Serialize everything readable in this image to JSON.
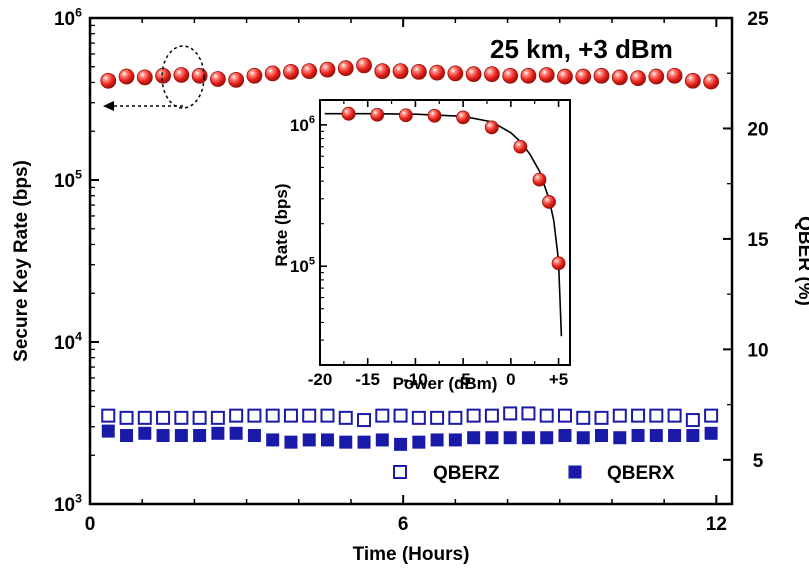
{
  "chart_data": [
    {
      "type": "scatter",
      "role": "main",
      "annotation": "25 km, +3 dBm",
      "xlabel": "Time (Hours)",
      "ylabel_left": "Secure Key Rate (bps)",
      "ylabel_right": "QBER (%)",
      "xlim": [
        0,
        12.3
      ],
      "x_ticks": [
        0,
        6,
        12
      ],
      "ylim_left": [
        1000,
        1000000
      ],
      "yscale_left": "log",
      "y_ticks_left": [
        {
          "base": "10",
          "exp": "3"
        },
        {
          "base": "10",
          "exp": "4"
        },
        {
          "base": "10",
          "exp": "5"
        },
        {
          "base": "10",
          "exp": "6"
        }
      ],
      "ylim_right": [
        3.0,
        25.0
      ],
      "y_ticks_right": [
        5,
        10,
        15,
        20,
        25
      ],
      "legend": {
        "placement": "bottom-right",
        "entries": [
          "QBERZ",
          "QBERX"
        ]
      },
      "series": [
        {
          "axis": "left",
          "marker": "sphere",
          "color": "#e8221b",
          "x": [
            0.35,
            0.7,
            1.05,
            1.4,
            1.75,
            2.1,
            2.45,
            2.8,
            3.15,
            3.5,
            3.85,
            4.2,
            4.55,
            4.9,
            5.25,
            5.6,
            5.95,
            6.3,
            6.65,
            7.0,
            7.35,
            7.7,
            8.05,
            8.4,
            8.75,
            9.1,
            9.45,
            9.8,
            10.15,
            10.5,
            10.85,
            11.2,
            11.55,
            11.9
          ],
          "y": [
            410000,
            435000,
            430000,
            440000,
            445000,
            440000,
            420000,
            415000,
            440000,
            455000,
            465000,
            470000,
            480000,
            490000,
            510000,
            470000,
            470000,
            465000,
            460000,
            455000,
            450000,
            450000,
            440000,
            440000,
            445000,
            435000,
            435000,
            440000,
            430000,
            425000,
            435000,
            440000,
            410000,
            405000
          ]
        },
        {
          "name": "QBERZ",
          "axis": "right",
          "marker": "open-square",
          "color": "#1a1aa8",
          "x": [
            0.35,
            0.7,
            1.05,
            1.4,
            1.75,
            2.1,
            2.45,
            2.8,
            3.15,
            3.5,
            3.85,
            4.2,
            4.55,
            4.9,
            5.25,
            5.6,
            5.95,
            6.3,
            6.65,
            7.0,
            7.35,
            7.7,
            8.05,
            8.4,
            8.75,
            9.1,
            9.45,
            9.8,
            10.15,
            10.5,
            10.85,
            11.2,
            11.55,
            11.9
          ],
          "y": [
            7.0,
            6.9,
            6.9,
            6.9,
            6.9,
            6.9,
            6.9,
            7.0,
            7.0,
            7.0,
            7.0,
            7.0,
            7.0,
            6.9,
            6.8,
            7.0,
            7.0,
            6.9,
            6.9,
            6.9,
            7.0,
            7.0,
            7.1,
            7.1,
            7.0,
            7.0,
            6.9,
            6.9,
            7.0,
            7.0,
            7.0,
            7.0,
            6.8,
            7.0
          ]
        },
        {
          "name": "QBERX",
          "axis": "right",
          "marker": "filled-square",
          "color": "#1a1aa8",
          "x": [
            0.35,
            0.7,
            1.05,
            1.4,
            1.75,
            2.1,
            2.45,
            2.8,
            3.15,
            3.5,
            3.85,
            4.2,
            4.55,
            4.9,
            5.25,
            5.6,
            5.95,
            6.3,
            6.65,
            7.0,
            7.35,
            7.7,
            8.05,
            8.4,
            8.75,
            9.1,
            9.45,
            9.8,
            10.15,
            10.5,
            10.85,
            11.2,
            11.55,
            11.9
          ],
          "y": [
            6.3,
            6.1,
            6.2,
            6.1,
            6.1,
            6.1,
            6.2,
            6.2,
            6.1,
            5.9,
            5.8,
            5.9,
            5.9,
            5.8,
            5.8,
            5.9,
            5.7,
            5.8,
            5.9,
            5.9,
            6.0,
            6.0,
            6.0,
            6.0,
            6.0,
            6.1,
            6.0,
            6.1,
            6.0,
            6.1,
            6.1,
            6.1,
            6.1,
            6.2
          ]
        }
      ]
    },
    {
      "type": "scatter",
      "role": "inset",
      "xlabel": "Power (dBm)",
      "ylabel": "Rate (bps)",
      "xlim": [
        -20,
        6.2
      ],
      "x_ticks": [
        -20,
        -15,
        -10,
        -5,
        0,
        5
      ],
      "x_tick_labels": [
        "-20",
        "-15",
        "-10",
        "-5",
        "0",
        "+5"
      ],
      "ylim": [
        20000,
        1500000
      ],
      "yscale": "log",
      "y_ticks": [
        {
          "base": "10",
          "exp": "5"
        },
        {
          "base": "10",
          "exp": "6"
        }
      ],
      "series": [
        {
          "marker": "sphere",
          "color": "#e8221b",
          "x": [
            -17,
            -14,
            -11,
            -8,
            -5,
            -2,
            1,
            3,
            4,
            5
          ],
          "y": [
            1200000,
            1180000,
            1170000,
            1160000,
            1130000,
            960000,
            700000,
            410000,
            285000,
            105000
          ]
        },
        {
          "marker": "line",
          "color": "#000000",
          "x": [
            -19.5,
            -15,
            -10,
            -5,
            -2,
            0,
            1,
            2,
            3,
            4,
            4.5,
            5,
            5.3
          ],
          "y": [
            1200000,
            1200000,
            1190000,
            1150000,
            1050000,
            880000,
            760000,
            620000,
            470000,
            300000,
            210000,
            110000,
            32000
          ]
        }
      ]
    }
  ]
}
